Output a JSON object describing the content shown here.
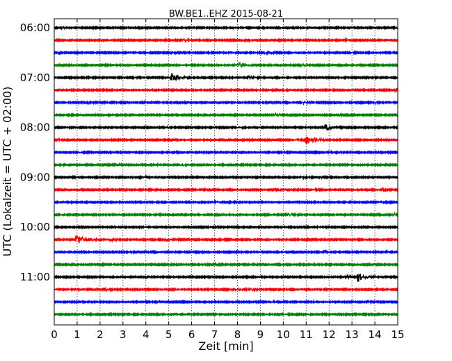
{
  "chart_data": {
    "type": "line",
    "title": "BW.BE1..EHZ 2015-08-21",
    "xlabel": "Zeit  [min]",
    "ylabel": "UTC (Lokalzeit = UTC + 02:00)",
    "xlim": [
      0,
      15
    ],
    "x_ticks": [
      "0",
      "1",
      "2",
      "3",
      "4",
      "5",
      "6",
      "7",
      "8",
      "9",
      "10",
      "11",
      "12",
      "13",
      "14",
      "15"
    ],
    "y_tick_labels": [
      "06:00",
      "07:00",
      "08:00",
      "09:00",
      "10:00",
      "11:00"
    ],
    "row_interval_min": 15,
    "grid": "vertical-dotted",
    "row_colors": [
      "#000000",
      "#ff0000",
      "#0000ff",
      "#008000"
    ],
    "rows": [
      {
        "start": "06:00",
        "events": [
          {
            "t": 0.35,
            "amp": 0.25
          },
          {
            "t": 10.5,
            "amp": 0.15
          },
          {
            "t": 14.9,
            "amp": 0.2
          }
        ]
      },
      {
        "start": "06:15",
        "events": [
          {
            "t": 5.6,
            "amp": 0.35
          },
          {
            "t": 8.2,
            "amp": 0.3
          },
          {
            "t": 8.45,
            "amp": 0.3
          },
          {
            "t": 12.7,
            "amp": 0.15
          }
        ]
      },
      {
        "start": "06:30",
        "events": [
          {
            "t": 0.2,
            "amp": 0.2
          },
          {
            "t": 5.15,
            "amp": 0.25
          },
          {
            "t": 9.2,
            "amp": 0.3
          },
          {
            "t": 9.5,
            "amp": 0.3
          },
          {
            "t": 13.0,
            "amp": 0.2
          }
        ]
      },
      {
        "start": "06:45",
        "events": [
          {
            "t": 7.9,
            "amp": 0.3
          },
          {
            "t": 8.1,
            "amp": 0.9
          },
          {
            "t": 10.8,
            "amp": 0.3
          }
        ]
      },
      {
        "start": "07:00",
        "events": [
          {
            "t": 3.5,
            "amp": 0.2
          },
          {
            "t": 5.1,
            "amp": 1.3
          },
          {
            "t": 8.5,
            "amp": 0.6
          }
        ]
      },
      {
        "start": "07:15",
        "events": [
          {
            "t": 10.0,
            "amp": 0.2
          },
          {
            "t": 14.9,
            "amp": 0.7
          }
        ]
      },
      {
        "start": "07:30",
        "events": [
          {
            "t": 1.4,
            "amp": 0.2
          },
          {
            "t": 3.9,
            "amp": 0.2
          },
          {
            "t": 10.85,
            "amp": 0.45
          },
          {
            "t": 14.0,
            "amp": 0.15
          }
        ]
      },
      {
        "start": "07:45",
        "events": [
          {
            "t": 9.6,
            "amp": 0.5
          },
          {
            "t": 12.5,
            "amp": 0.15
          }
        ]
      },
      {
        "start": "08:00",
        "events": [
          {
            "t": 4.9,
            "amp": 0.2
          },
          {
            "t": 8.0,
            "amp": 0.35
          },
          {
            "t": 11.85,
            "amp": 1.1
          }
        ]
      },
      {
        "start": "08:15",
        "events": [
          {
            "t": 0.1,
            "amp": 0.3
          },
          {
            "t": 10.5,
            "amp": 0.35
          },
          {
            "t": 11.0,
            "amp": 1.2
          },
          {
            "t": 11.3,
            "amp": 0.5
          }
        ]
      },
      {
        "start": "08:30",
        "events": [
          {
            "t": 1.1,
            "amp": 0.15
          },
          {
            "t": 12.0,
            "amp": 0.15
          }
        ]
      },
      {
        "start": "08:45",
        "events": [
          {
            "t": 2.7,
            "amp": 0.2
          },
          {
            "t": 5.5,
            "amp": 0.35
          }
        ]
      },
      {
        "start": "09:00",
        "events": [
          {
            "t": 3.75,
            "amp": 0.55
          },
          {
            "t": 10.8,
            "amp": 0.2
          },
          {
            "t": 11.6,
            "amp": 0.2
          }
        ]
      },
      {
        "start": "09:15",
        "events": [
          {
            "t": 9.7,
            "amp": 0.35
          },
          {
            "t": 11.3,
            "amp": 0.2
          },
          {
            "t": 14.1,
            "amp": 0.3
          },
          {
            "t": 14.3,
            "amp": 0.25
          }
        ]
      },
      {
        "start": "09:30",
        "events": [
          {
            "t": 7.0,
            "amp": 0.25
          },
          {
            "t": 14.2,
            "amp": 0.2
          }
        ]
      },
      {
        "start": "09:45",
        "events": [
          {
            "t": 10.2,
            "amp": 0.35
          },
          {
            "t": 14.8,
            "amp": 0.45
          }
        ]
      },
      {
        "start": "10:00",
        "events": [
          {
            "t": 3.9,
            "amp": 0.15
          },
          {
            "t": 11.5,
            "amp": 0.15
          }
        ]
      },
      {
        "start": "10:15",
        "events": [
          {
            "t": 0.95,
            "amp": 1.7
          },
          {
            "t": 2.45,
            "amp": 0.4
          },
          {
            "t": 4.9,
            "amp": 0.45
          }
        ]
      },
      {
        "start": "10:30",
        "events": [
          {
            "t": 6.0,
            "amp": 0.2
          },
          {
            "t": 11.8,
            "amp": 0.2
          },
          {
            "t": 14.5,
            "amp": 0.15
          }
        ]
      },
      {
        "start": "10:45",
        "events": [
          {
            "t": 7.0,
            "amp": 0.15
          },
          {
            "t": 12.0,
            "amp": 0.15
          }
        ]
      },
      {
        "start": "11:00",
        "events": [
          {
            "t": 4.0,
            "amp": 0.15
          },
          {
            "t": 12.7,
            "amp": 0.4
          },
          {
            "t": 13.25,
            "amp": 1.3
          }
        ]
      },
      {
        "start": "11:15",
        "events": [
          {
            "t": 2.2,
            "amp": 0.45
          },
          {
            "t": 7.8,
            "amp": 0.5
          },
          {
            "t": 8.6,
            "amp": 0.3
          }
        ]
      },
      {
        "start": "11:30",
        "events": [
          {
            "t": 4.5,
            "amp": 0.2
          },
          {
            "t": 9.35,
            "amp": 0.3
          },
          {
            "t": 11.3,
            "amp": 0.15
          },
          {
            "t": 13.7,
            "amp": 0.15
          }
        ]
      },
      {
        "start": "11:45",
        "events": [
          {
            "t": 10.0,
            "amp": 0.1
          }
        ]
      }
    ]
  }
}
